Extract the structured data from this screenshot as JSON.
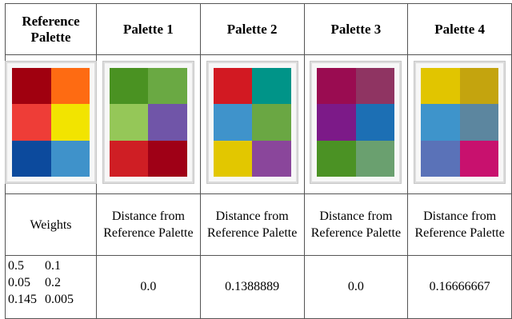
{
  "headers": [
    "Reference Palette",
    "Palette 1",
    "Palette 2",
    "Palette 3",
    "Palette 4"
  ],
  "palettes": [
    {
      "name": "reference",
      "colors": [
        "#a0000f",
        "#fe6b12",
        "#ee3d37",
        "#f2e400",
        "#0c4a9d",
        "#3f92ca"
      ]
    },
    {
      "name": "palette-1",
      "colors": [
        "#4a9222",
        "#6aa943",
        "#95c758",
        "#7055a8",
        "#cf1e24",
        "#9f0016"
      ]
    },
    {
      "name": "palette-2",
      "colors": [
        "#d21922",
        "#009488",
        "#3f93cb",
        "#6aa743",
        "#e2c700",
        "#8a469b"
      ]
    },
    {
      "name": "palette-3",
      "colors": [
        "#9a0c51",
        "#8f3462",
        "#7c1a88",
        "#1c6fb4",
        "#4b9224",
        "#6aa06f"
      ]
    },
    {
      "name": "palette-4",
      "colors": [
        "#e1c500",
        "#c4a40e",
        "#3e94cb",
        "#5c869f",
        "#5a72b8",
        "#c8116e"
      ]
    }
  ],
  "label_row": {
    "weights_label": "Weights",
    "distance_label": "Distance from Reference Palette"
  },
  "weights": [
    [
      "0.5",
      "0.1"
    ],
    [
      "0.05",
      "0.2"
    ],
    [
      "0.145",
      "0.005"
    ]
  ],
  "distances": [
    "0.0",
    "0.1388889",
    "0.0",
    "0.16666667"
  ]
}
